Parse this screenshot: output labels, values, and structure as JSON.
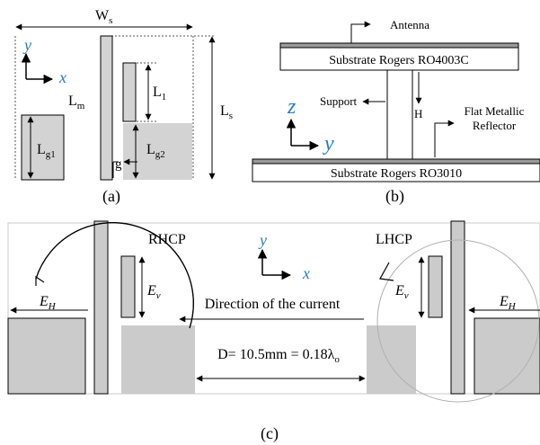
{
  "panel_a": {
    "caption": "(a)",
    "Ws": {
      "main": "W",
      "sub": "s"
    },
    "Ls": {
      "main": "L",
      "sub": "s"
    },
    "Lm": {
      "main": "L",
      "sub": "m"
    },
    "L1": {
      "main": "L",
      "sub": "1"
    },
    "Lg1": {
      "main": "L",
      "sub": "g1"
    },
    "Lg2": {
      "main": "L",
      "sub": "g2"
    },
    "g": "g",
    "axis_y": "y",
    "axis_x": "x"
  },
  "panel_b": {
    "caption": "(b)",
    "antenna": "Antenna",
    "top_substrate": "Substrate Rogers RO4003C",
    "support": "Support",
    "height": "H",
    "reflector_line1": "Flat Metallic",
    "reflector_line2": "Reflector",
    "bottom_substrate": "Substrate Rogers RO3010",
    "axis_z": "z",
    "axis_y": "y"
  },
  "panel_c": {
    "caption": "(c)",
    "rhcp": "RHCP",
    "lhcp": "LHCP",
    "axis_y": "y",
    "axis_x": "x",
    "current_text": "Direction of the current",
    "distance_text": "D= 10.5mm = 0.18λ",
    "distance_sub": "o",
    "eh_left": {
      "main": "E",
      "sub": "H"
    },
    "ev_left": {
      "main": "E",
      "sub": "v"
    },
    "ev_right": {
      "main": "E",
      "sub": "v"
    },
    "eh_right": {
      "main": "E",
      "sub": "H"
    }
  },
  "colors": {
    "fill_gray": "#d3d3d3",
    "ground_gray": "#cbcbcb",
    "axis_blue": "#2b7bbf",
    "stroke": "#000000"
  }
}
